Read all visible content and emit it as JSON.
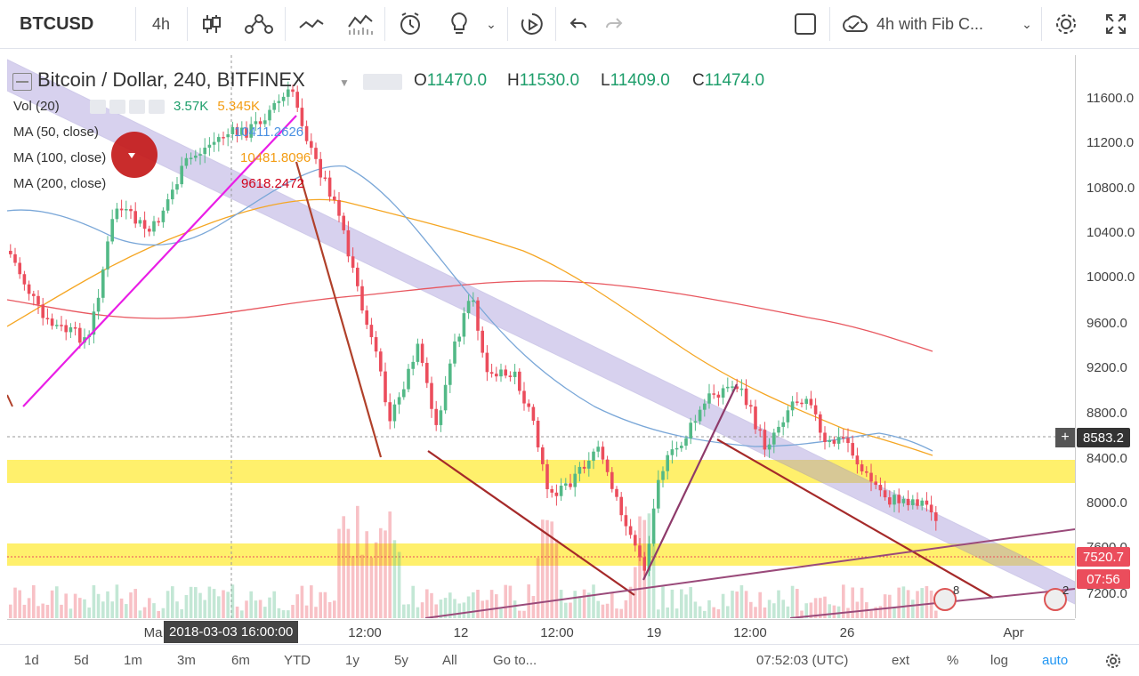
{
  "toolbar": {
    "symbol": "BTCUSD",
    "interval": "4h",
    "layout_name": "4h with Fib C...",
    "icons": [
      "candles-icon",
      "indicators-icon",
      "compare-icon",
      "drawing-templates-icon",
      "alert-icon",
      "ideas-icon",
      "chevron-down-icon",
      "replay-icon",
      "undo-icon",
      "redo-icon",
      "fullscreen-box-icon",
      "cloud-icon",
      "chevron-down-icon",
      "settings-icon",
      "expand-icon"
    ]
  },
  "header": {
    "title": "Bitcoin / Dollar, 240, BITFINEX",
    "ohlc": {
      "o_label": "O",
      "o": "11470.0",
      "h_label": "H",
      "h": "11530.0",
      "l_label": "L",
      "l": "11409.0",
      "c_label": "C",
      "c": "11474.0"
    }
  },
  "indicators": [
    {
      "name": "Vol (20)",
      "value1": "3.57K",
      "value2": "5.345K",
      "color1": "#1e9e6b",
      "color2": "#f39c12"
    },
    {
      "name": "MA (50, close)",
      "value1": "10411.2626",
      "color1": "#4a90e2"
    },
    {
      "name": "MA (100, close)",
      "value1": "10481.8096",
      "color1": "#f39c12"
    },
    {
      "name": "MA (200, close)",
      "value1": "9618.2472",
      "color1": "#d0021b"
    }
  ],
  "price_axis": {
    "ticks": [
      "11600.0",
      "11200.0",
      "10800.0",
      "10400.0",
      "10000.0",
      "9600.0",
      "9200.0",
      "8800.0",
      "8400.0",
      "8000.0",
      "7600.0",
      "7200.0"
    ],
    "crosshair_price": "8583.2",
    "last_price": "7520.7",
    "countdown": "07:56"
  },
  "time_axis": {
    "ticks": [
      "Ma",
      "12:00",
      "12",
      "12:00",
      "19",
      "12:00",
      "26",
      "Apr"
    ],
    "crosshair_time": "2018-03-03 16:00:00"
  },
  "bottom_bar": {
    "ranges": [
      "1d",
      "5d",
      "1m",
      "3m",
      "6m",
      "YTD",
      "1y",
      "5y",
      "All"
    ],
    "goto": "Go to...",
    "clock": "07:52:03 (UTC)",
    "options": [
      "ext",
      "%",
      "log",
      "auto"
    ]
  },
  "markers": {
    "earnings_count_1": "8",
    "earnings_count_2": "2"
  },
  "colors": {
    "up": "#53b987",
    "down": "#eb4d5c",
    "channel": "#9c8fd6",
    "support": "#ffeb3b",
    "trend_pink": "#e91ee6",
    "trend_brown": "#a52a2a"
  }
}
